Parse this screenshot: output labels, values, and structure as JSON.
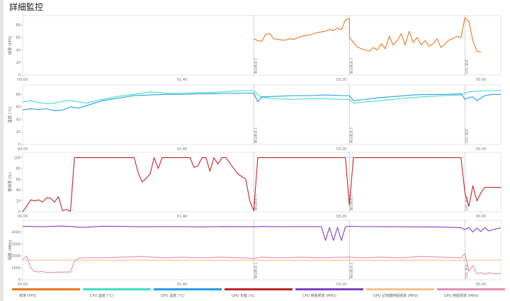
{
  "window": {
    "title": "詳細監控"
  },
  "chart_data": [
    {
      "type": "line",
      "ylabel": "幀率 (FPS)",
      "yticks": [
        0,
        20,
        40,
        60,
        80
      ],
      "ylim": [
        0,
        95
      ],
      "xticks": [
        "00:00",
        "01:40",
        "03:20",
        "05:00"
      ],
      "markers": [
        {
          "x": 58,
          "label": "默认航点 1"
        },
        {
          "x": 82,
          "label": "默认航点 2"
        },
        {
          "x": 111,
          "label": "CPU 测试"
        }
      ],
      "series": [
        {
          "name": "幀率 (FPS)",
          "color": "#e8791d",
          "x": [
            58,
            59,
            60,
            61,
            62,
            63,
            64,
            65,
            66,
            67,
            68,
            70,
            72,
            74,
            76,
            77,
            78,
            79,
            80,
            81,
            82,
            82,
            83,
            84,
            85,
            86,
            87,
            88,
            89,
            90,
            91,
            92,
            93,
            94,
            95,
            96,
            97,
            98,
            99,
            100,
            101,
            102,
            103,
            104,
            105,
            106,
            107,
            108,
            109,
            110,
            111,
            112,
            113,
            114,
            115
          ],
          "y": [
            58,
            55,
            54,
            65,
            66,
            58,
            57,
            56,
            56,
            58,
            57,
            62,
            64,
            68,
            70,
            73,
            71,
            75,
            72,
            88,
            90,
            60,
            52,
            45,
            42,
            40,
            38,
            44,
            40,
            50,
            42,
            62,
            48,
            55,
            66,
            48,
            70,
            52,
            60,
            48,
            55,
            46,
            50,
            58,
            44,
            50,
            56,
            58,
            62,
            60,
            92,
            85,
            55,
            38,
            37
          ]
        }
      ]
    },
    {
      "type": "line",
      "ylabel": "溫度 (°C)",
      "yticks": [
        0,
        20,
        40,
        60,
        80
      ],
      "ylim": [
        0,
        95
      ],
      "xticks": [
        "00:00",
        "01:40",
        "03:20",
        "05:00"
      ],
      "markers": [
        {
          "x": 58,
          "label": "默认航点 1"
        },
        {
          "x": 82,
          "label": "默认航点 2"
        },
        {
          "x": 111,
          "label": "CPU 测试"
        }
      ],
      "series": [
        {
          "name": "CPU 溫度 (°C)",
          "color": "#3fe0c4",
          "x": [
            0,
            2,
            4,
            6,
            8,
            10,
            12,
            14,
            16,
            20,
            24,
            28,
            32,
            36,
            40,
            44,
            48,
            52,
            56,
            58,
            59,
            60,
            64,
            68,
            72,
            76,
            80,
            82,
            83,
            86,
            90,
            94,
            98,
            102,
            106,
            110,
            111,
            112,
            116,
            120
          ],
          "y": [
            68,
            70,
            67,
            65,
            66,
            69,
            70,
            68,
            66,
            72,
            77,
            80,
            84,
            82,
            82,
            83,
            83,
            85,
            86,
            86,
            80,
            75,
            73,
            72,
            73,
            73,
            72,
            72,
            66,
            68,
            70,
            73,
            75,
            77,
            78,
            79,
            82,
            84,
            86,
            86
          ]
        },
        {
          "name": "GPU 溫度 (°C)",
          "color": "#2a9de8",
          "x": [
            0,
            2,
            4,
            6,
            8,
            10,
            12,
            14,
            16,
            20,
            24,
            28,
            32,
            36,
            40,
            44,
            48,
            52,
            56,
            58,
            59,
            60,
            64,
            68,
            72,
            76,
            80,
            82,
            83,
            86,
            90,
            94,
            98,
            102,
            106,
            110,
            111,
            112,
            113,
            114,
            116,
            118,
            120
          ],
          "y": [
            55,
            57,
            56,
            57,
            54,
            55,
            60,
            58,
            62,
            70,
            74,
            78,
            79,
            80,
            80,
            81,
            81,
            82,
            82,
            82,
            68,
            76,
            77,
            78,
            78,
            79,
            78,
            78,
            70,
            72,
            75,
            77,
            79,
            80,
            80,
            81,
            72,
            75,
            76,
            70,
            78,
            80,
            80
          ]
        }
      ]
    },
    {
      "type": "line",
      "ylabel": "使用率 (%)",
      "yticks": [
        0,
        20,
        40,
        60,
        80,
        100
      ],
      "ylim": [
        0,
        110
      ],
      "xticks": [
        "00:00",
        "01:40",
        "03:20",
        "05:00"
      ],
      "markers": [
        {
          "x": 58,
          "label": "默认航点 1"
        },
        {
          "x": 82,
          "label": "默认航点 2"
        },
        {
          "x": 111,
          "label": "CPU 测试"
        }
      ],
      "series": [
        {
          "name": "GPU 負載 (%)",
          "color": "#c0262a",
          "x": [
            0,
            1,
            2,
            3,
            4,
            5,
            6,
            7,
            8,
            9,
            10,
            11,
            12,
            13,
            14,
            28,
            29,
            30,
            31,
            32,
            33,
            34,
            35,
            36,
            37,
            38,
            42,
            43,
            44,
            45,
            46,
            47,
            48,
            49,
            50,
            51,
            52,
            53,
            54,
            56,
            57,
            58,
            59,
            60,
            61,
            62,
            81,
            82,
            83,
            84,
            85,
            86,
            87,
            88,
            110,
            111,
            112,
            113,
            114,
            115,
            116,
            117,
            118,
            119,
            120
          ],
          "y": [
            0,
            10,
            22,
            20,
            22,
            18,
            26,
            25,
            18,
            28,
            2,
            4,
            1,
            100,
            100,
            100,
            72,
            55,
            62,
            70,
            100,
            80,
            100,
            100,
            100,
            100,
            100,
            82,
            85,
            100,
            100,
            75,
            100,
            88,
            100,
            100,
            90,
            80,
            70,
            60,
            20,
            2,
            100,
            100,
            100,
            100,
            100,
            12,
            100,
            100,
            100,
            100,
            100,
            100,
            100,
            35,
            10,
            48,
            20,
            35,
            45,
            45,
            45,
            45,
            45
          ]
        }
      ]
    },
    {
      "type": "line",
      "ylabel": "時脈 (MHz)",
      "yticks": [
        0,
        1000,
        2000,
        3000,
        4000
      ],
      "ylim": [
        0,
        5000
      ],
      "xticks": [
        "00:00",
        "01:40",
        "03:20",
        "05:00"
      ],
      "markers": [
        {
          "x": 58,
          "label": "默认航点 1"
        },
        {
          "x": 82,
          "label": "默认航点 2"
        },
        {
          "x": 111,
          "label": "CPU 测试"
        }
      ],
      "series": [
        {
          "name": "CPU 時脈頻率 (MHz)",
          "color": "#8040c0",
          "x": [
            0,
            5,
            10,
            15,
            20,
            25,
            30,
            35,
            40,
            45,
            50,
            55,
            58,
            60,
            65,
            70,
            75,
            76,
            77,
            78,
            79,
            80,
            81,
            82,
            85,
            90,
            95,
            100,
            105,
            110,
            111,
            112,
            113,
            114,
            115,
            116,
            117,
            118,
            119,
            120
          ],
          "y": [
            4500,
            4450,
            4520,
            4400,
            4500,
            4480,
            4450,
            4470,
            4460,
            4440,
            4470,
            4460,
            4450,
            4480,
            4450,
            4470,
            4460,
            3300,
            4400,
            3300,
            4400,
            3300,
            4450,
            4500,
            4470,
            4460,
            4450,
            4440,
            4430,
            4380,
            4200,
            4400,
            4000,
            4350,
            4050,
            4380,
            4100,
            4200,
            4300,
            4350
          ]
        },
        {
          "name": "GPU 記憶體時脈頻率 (MHz)",
          "color": "#f2c58a",
          "x": [
            0,
            120
          ],
          "y": [
            1650,
            1650
          ]
        },
        {
          "name": "GPU 時脈頻率 (MHz)",
          "color": "#e58fb4",
          "x": [
            0,
            1,
            2,
            3,
            4,
            5,
            6,
            7,
            8,
            9,
            10,
            11,
            12,
            13,
            14,
            15,
            20,
            25,
            30,
            35,
            40,
            45,
            50,
            55,
            58,
            60,
            65,
            70,
            75,
            80,
            82,
            85,
            90,
            95,
            100,
            105,
            110,
            111,
            112,
            113,
            114,
            115,
            116,
            117,
            118,
            119,
            120
          ],
          "y": [
            1700,
            2000,
            1000,
            700,
            650,
            700,
            600,
            620,
            620,
            650,
            630,
            660,
            650,
            1550,
            1800,
            1850,
            1850,
            1900,
            1950,
            1850,
            1900,
            1850,
            1900,
            1850,
            1800,
            1900,
            1850,
            1900,
            1850,
            1900,
            1900,
            1850,
            1900,
            1850,
            1950,
            1900,
            1850,
            2200,
            700,
            1200,
            500,
            600,
            450,
            600,
            500,
            520,
            530
          ]
        }
      ]
    }
  ],
  "legend": [
    {
      "label": "幀率 (FPS)",
      "color": "#e8791d"
    },
    {
      "label": "CPU 溫度 (°C)",
      "color": "#3fe0c4"
    },
    {
      "label": "GPU 溫度 (°C)",
      "color": "#2a9de8"
    },
    {
      "label": "GPU 負載 (%)",
      "color": "#c0262a"
    },
    {
      "label": "CPU 時脈頻率 (MHz)",
      "color": "#8040c0"
    },
    {
      "label": "GPU 記憶體時脈頻率 (MHz)",
      "color": "#f2c58a"
    },
    {
      "label": "GPU 時脈頻率 (MHz)",
      "color": "#e58fb4"
    }
  ]
}
